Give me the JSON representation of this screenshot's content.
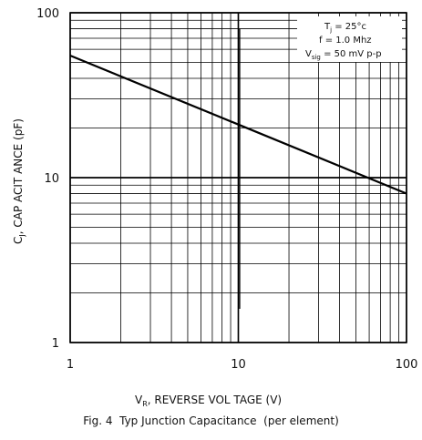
{
  "chart_data": {
    "type": "line",
    "x_scale": "log",
    "y_scale": "log",
    "xlim": [
      1,
      100
    ],
    "ylim": [
      1,
      100
    ],
    "grid": true,
    "x_ticks": [
      "1",
      "10",
      "100"
    ],
    "y_ticks": [
      "100",
      "10",
      "1"
    ],
    "series": [
      {
        "x": [
          1,
          10,
          100
        ],
        "y": [
          55,
          21,
          8
        ]
      }
    ],
    "conditions": {
      "line1": "T",
      "line1_sub": "j",
      "line1_rest": " = 25°c",
      "line2": "f = 1.0  Mhz",
      "line3": "V",
      "line3_sub": "sig",
      "line3_rest": " = 50  mV  p-p"
    },
    "ylabel": "C , CAP ACIT ANCE  (pF)",
    "ylabel_main": "C",
    "ylabel_sub": "J",
    "ylabel_rest": ",  CAP ACIT ANCE  (pF)",
    "xlabel_main": "V",
    "xlabel_sub": "R",
    "xlabel_rest": ", REVERSE     VOL TAGE  (V)",
    "caption": "Fig. 4  Typ Junction Capacitance  (per element)"
  }
}
